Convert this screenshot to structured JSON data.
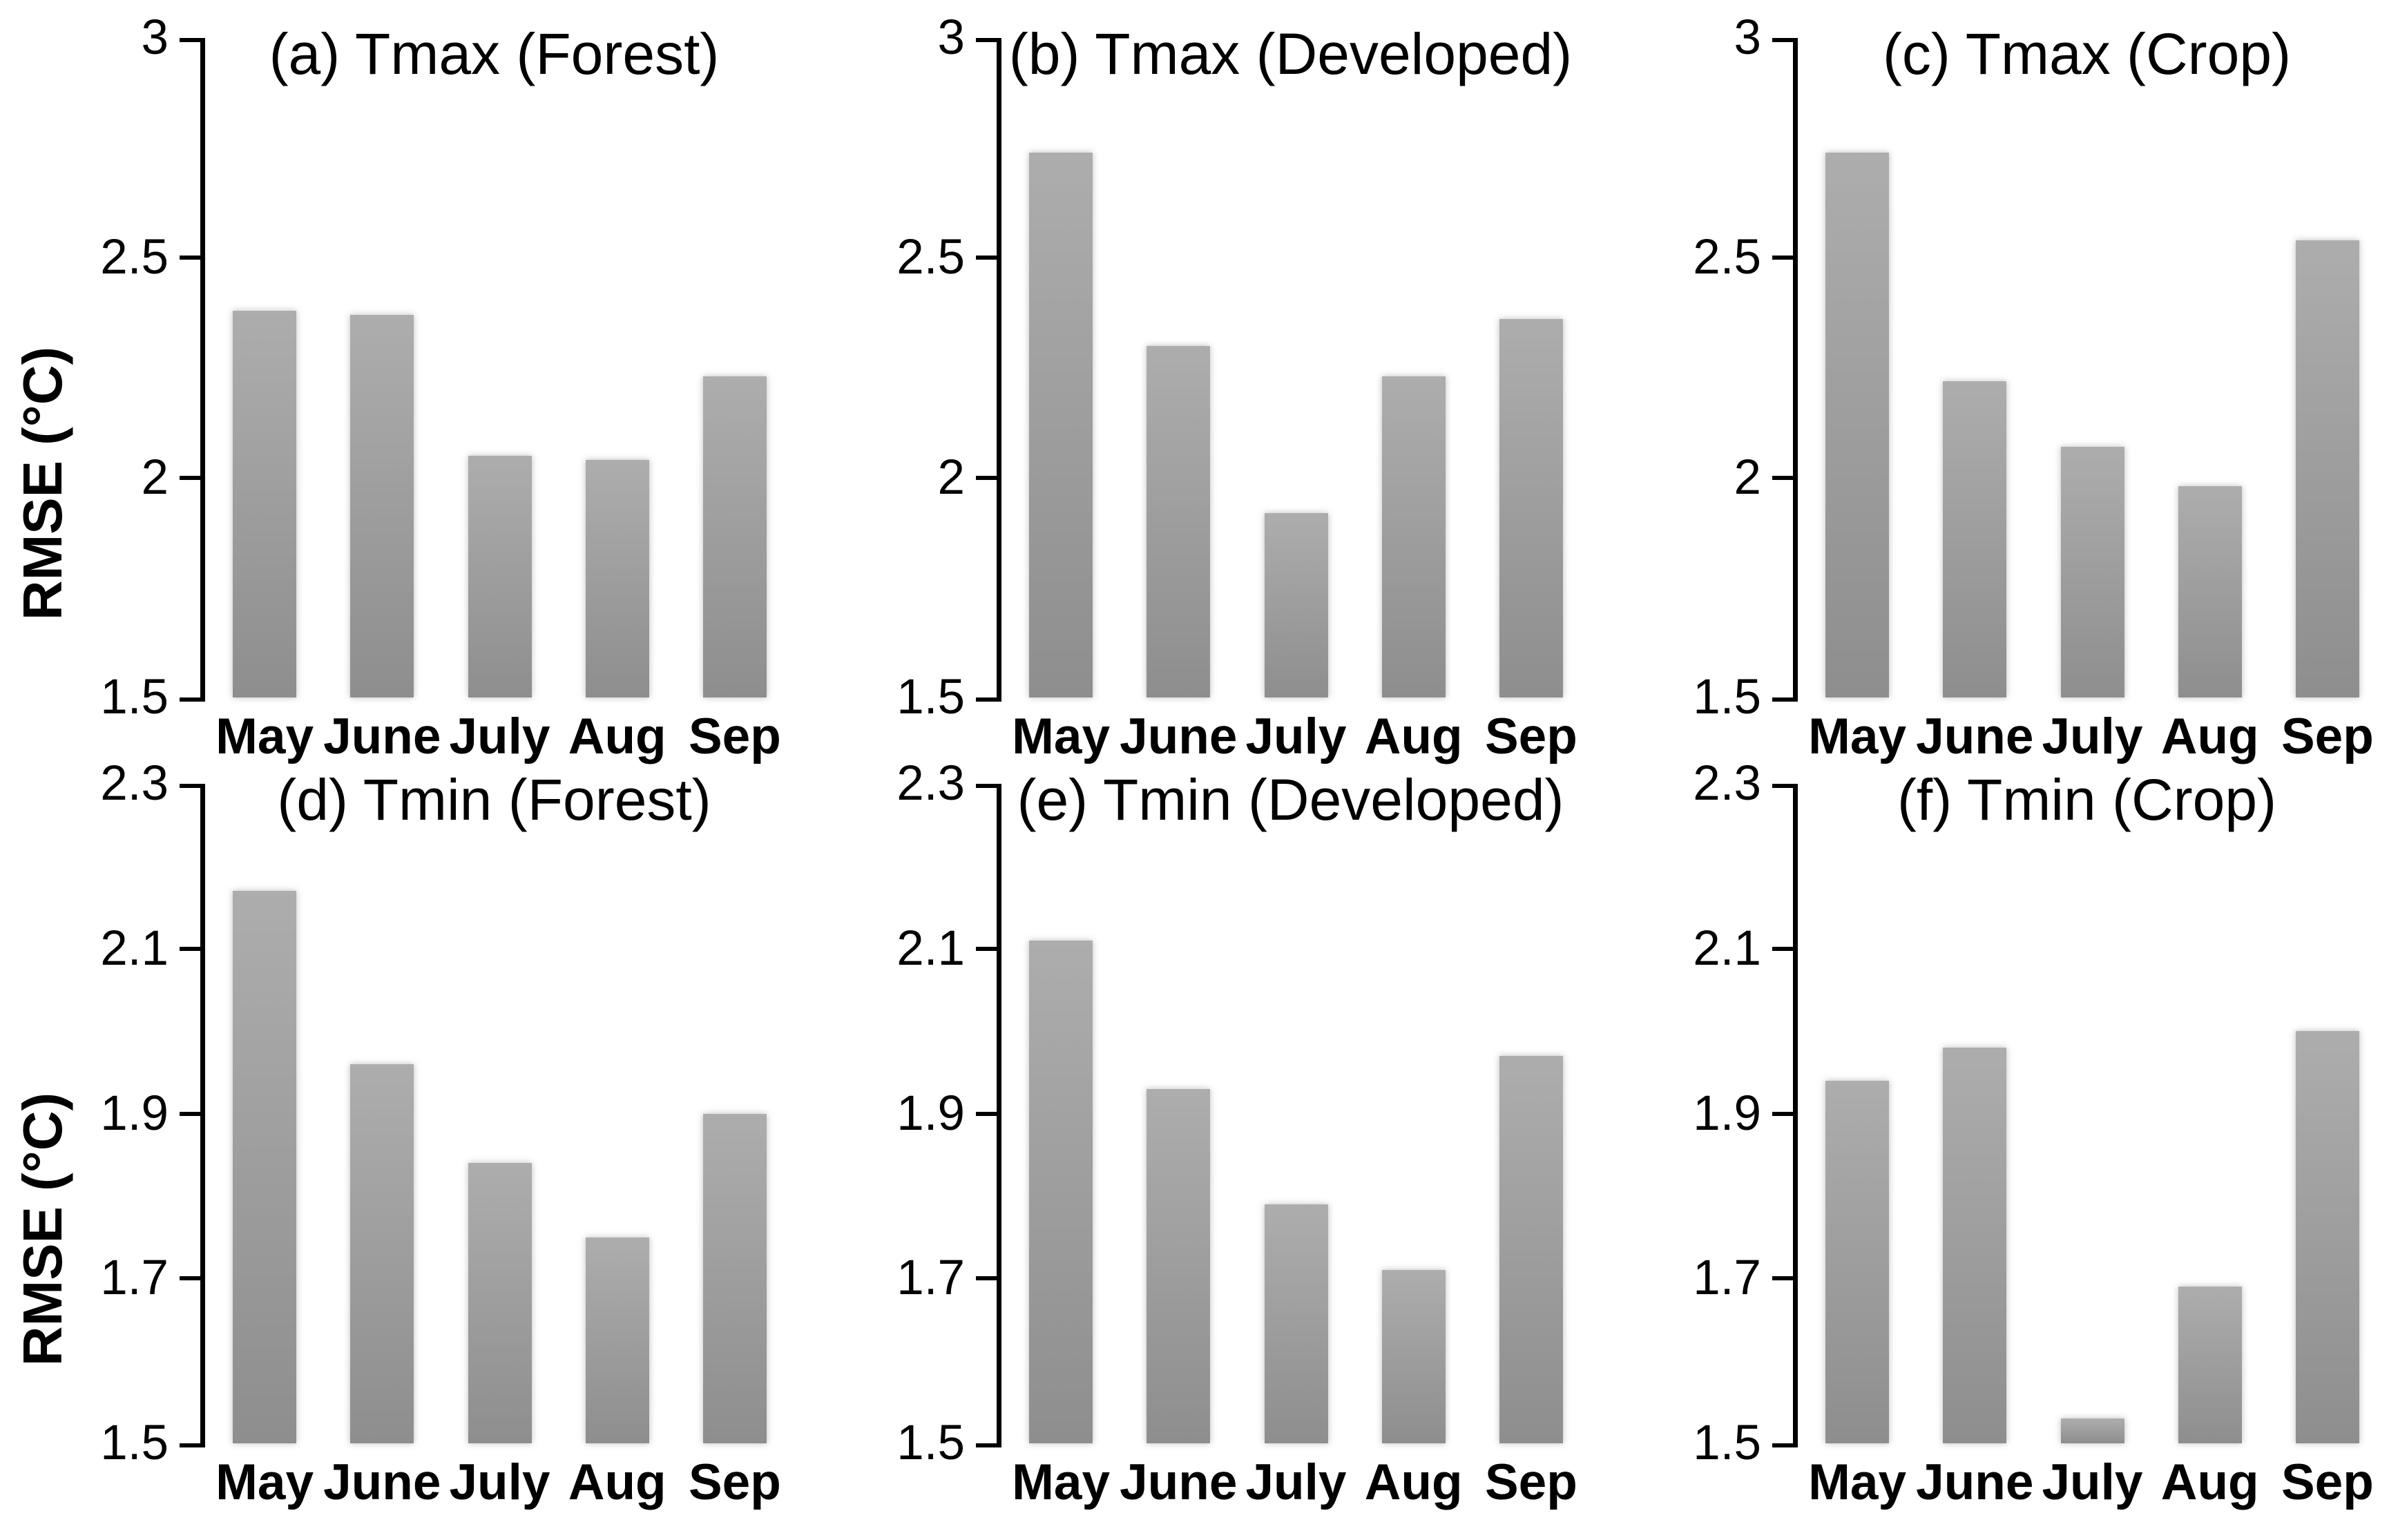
{
  "figure": {
    "ylabel": "RMSE (°C)",
    "categories": [
      "May",
      "June",
      "July",
      "Aug",
      "Sep"
    ]
  },
  "colors": {
    "bar_top": "#adadad",
    "bar_mid": "#9c9c9c",
    "bar_bottom": "#8e8e8e",
    "axis": "#000000",
    "text": "#000000"
  },
  "chart_data": [
    {
      "type": "bar",
      "title": "(a) Tmax (Forest)",
      "ylabel": "RMSE (°C)",
      "xlabel": "",
      "categories": [
        "May",
        "June",
        "July",
        "Aug",
        "Sep"
      ],
      "values": [
        2.38,
        2.37,
        2.05,
        2.04,
        2.23
      ],
      "ylim": [
        1.5,
        3
      ],
      "yticks": [
        3,
        2.5,
        2,
        1.5
      ],
      "ytick_labels": [
        "3",
        "2.5",
        "2",
        "1.5"
      ],
      "grid": "off",
      "legend": "none"
    },
    {
      "type": "bar",
      "title": "(b) Tmax (Developed)",
      "ylabel": null,
      "xlabel": "",
      "categories": [
        "May",
        "June",
        "July",
        "Aug",
        "Sep"
      ],
      "values": [
        2.74,
        2.3,
        1.92,
        2.23,
        2.36
      ],
      "ylim": [
        1.5,
        3
      ],
      "yticks": [
        3,
        2.5,
        2,
        1.5
      ],
      "ytick_labels": [
        "3",
        "2.5",
        "2",
        "1.5"
      ],
      "grid": "off",
      "legend": "none"
    },
    {
      "type": "bar",
      "title": "(c) Tmax (Crop)",
      "ylabel": null,
      "xlabel": "",
      "categories": [
        "May",
        "June",
        "July",
        "Aug",
        "Sep"
      ],
      "values": [
        2.74,
        2.22,
        2.07,
        1.98,
        2.54
      ],
      "ylim": [
        1.5,
        3
      ],
      "yticks": [
        3,
        2.5,
        2,
        1.5
      ],
      "ytick_labels": [
        "3",
        "2.5",
        "2",
        "1.5"
      ],
      "grid": "off",
      "legend": "none"
    },
    {
      "type": "bar",
      "title": "(d) Tmin (Forest)",
      "ylabel": "RMSE (°C)",
      "xlabel": "",
      "categories": [
        "May",
        "June",
        "July",
        "Aug",
        "Sep"
      ],
      "values": [
        2.17,
        1.96,
        1.84,
        1.75,
        1.9
      ],
      "ylim": [
        1.5,
        2.3
      ],
      "yticks": [
        2.3,
        2.1,
        1.9,
        1.7,
        1.5
      ],
      "ytick_labels": [
        "2.3",
        "2.1",
        "1.9",
        "1.7",
        "1.5"
      ],
      "grid": "off",
      "legend": "none"
    },
    {
      "type": "bar",
      "title": "(e) Tmin (Developed)",
      "ylabel": null,
      "xlabel": "",
      "categories": [
        "May",
        "June",
        "July",
        "Aug",
        "Sep"
      ],
      "values": [
        2.11,
        1.93,
        1.79,
        1.71,
        1.97
      ],
      "ylim": [
        1.5,
        2.3
      ],
      "yticks": [
        2.3,
        2.1,
        1.9,
        1.7,
        1.5
      ],
      "ytick_labels": [
        "2.3",
        "2.1",
        "1.9",
        "1.7",
        "1.5"
      ],
      "grid": "off",
      "legend": "none"
    },
    {
      "type": "bar",
      "title": "(f) Tmin (Crop)",
      "ylabel": null,
      "xlabel": "",
      "categories": [
        "May",
        "June",
        "July",
        "Aug",
        "Sep"
      ],
      "values": [
        1.94,
        1.98,
        1.53,
        1.69,
        2.0
      ],
      "ylim": [
        1.5,
        2.3
      ],
      "yticks": [
        2.3,
        2.1,
        1.9,
        1.7,
        1.5
      ],
      "ytick_labels": [
        "2.3",
        "2.1",
        "1.9",
        "1.7",
        "1.5"
      ],
      "grid": "off",
      "legend": "none"
    }
  ]
}
